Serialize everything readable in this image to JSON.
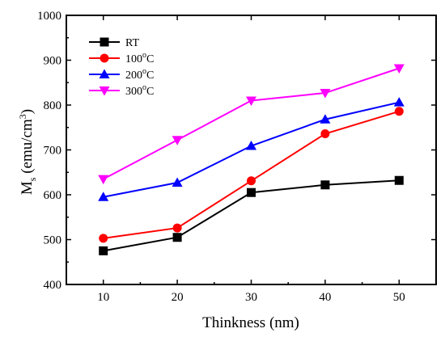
{
  "chart_data": {
    "type": "line",
    "x": [
      10,
      20,
      30,
      40,
      50
    ],
    "xticks": [
      "10",
      "20",
      "30",
      "40",
      "50"
    ],
    "xlim": [
      5,
      55
    ],
    "ylim": [
      400,
      1000
    ],
    "yticks": [
      "400",
      "500",
      "600",
      "700",
      "800",
      "900",
      "1000"
    ],
    "xlabel": "Thinkness (nm)",
    "ylabel_main": "M",
    "ylabel_sub": "s",
    "ylabel_rest": " (emu/cm",
    "ylabel_sup": "3",
    "ylabel_close": ")",
    "legend_position": "top-left",
    "grid": false,
    "series": [
      {
        "name": "RT",
        "sup": "",
        "suffix": "",
        "color": "#000000",
        "marker": "square",
        "values": [
          475,
          505,
          605,
          622,
          632
        ]
      },
      {
        "name": "100",
        "sup": "o",
        "suffix": "C",
        "color": "#ff0000",
        "marker": "circle",
        "values": [
          503,
          526,
          631,
          736,
          786
        ]
      },
      {
        "name": "200",
        "sup": "o",
        "suffix": "C",
        "color": "#0000ff",
        "marker": "triangle-up",
        "values": [
          595,
          627,
          709,
          768,
          806
        ]
      },
      {
        "name": "300",
        "sup": "o",
        "suffix": "C",
        "color": "#ff00ff",
        "marker": "triangle-down",
        "values": [
          635,
          722,
          810,
          827,
          882
        ]
      }
    ]
  }
}
